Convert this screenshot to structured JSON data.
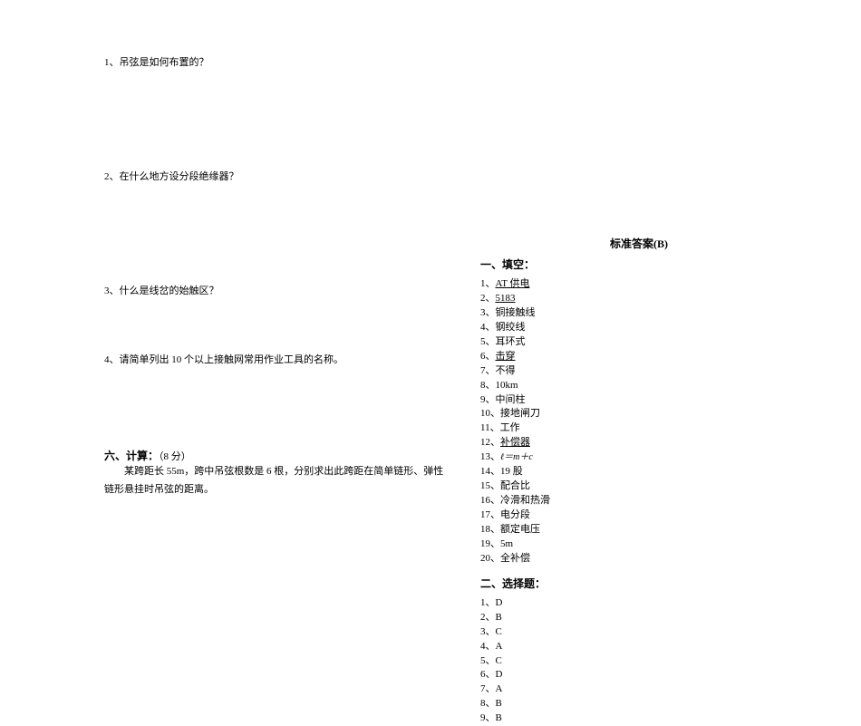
{
  "left": {
    "q1": "1、吊弦是如何布置的？",
    "q2": "2、在什么地方设分段绝缘器？",
    "q3": "3、什么是线岔的始触区？",
    "q4": "4、请简单列出 10 个以上接触网常用作业工具的名称。",
    "calc_heading": "六、计算：",
    "calc_points": "（8 分）",
    "calc_body": "某跨距长 55m，跨中吊弦根数是 6 根，分别求出此跨距在简单链形、弹性链形悬挂时吊弦的距离。"
  },
  "right": {
    "title": "标准答案(B)",
    "fill_heading": "一、填空：",
    "answers": [
      {
        "n": "1、",
        "t": "AT 供电",
        "u": true
      },
      {
        "n": "2、",
        "t": "5183",
        "u": true
      },
      {
        "n": "3、",
        "t": "铜接触线",
        "u": false
      },
      {
        "n": "4、",
        "t": "钢绞线",
        "u": false
      },
      {
        "n": "5、",
        "t": "耳环式",
        "u": false
      },
      {
        "n": "6、",
        "t": "击穿",
        "u": true
      },
      {
        "n": "7、",
        "t": "不得",
        "u": false
      },
      {
        "n": "8、",
        "t": "10km",
        "u": false
      },
      {
        "n": "9、",
        "t": "中间柱",
        "u": false
      },
      {
        "n": "10、",
        "t": "接地闸刀",
        "u": false
      },
      {
        "n": "11、",
        "t": "工作",
        "u": false
      },
      {
        "n": "12、",
        "t": "补偿器",
        "u": true
      },
      {
        "n": "13、",
        "t": "",
        "u": false,
        "formula": "ℓ＝m＋c"
      },
      {
        "n": "14、",
        "t": "19 股",
        "u": false
      },
      {
        "n": "15、",
        "t": "配合比",
        "u": false
      },
      {
        "n": "16、",
        "t": "冷滑和热滑",
        "u": false
      },
      {
        "n": "17、",
        "t": "电分段",
        "u": false
      },
      {
        "n": "18、",
        "t": "额定电压",
        "u": false
      },
      {
        "n": "19、",
        "t": "5m",
        "u": false
      },
      {
        "n": "20、",
        "t": "全补偿",
        "u": false
      }
    ],
    "choice_heading": "二、选择题：",
    "choices": [
      {
        "n": "1、",
        "t": "D"
      },
      {
        "n": "2、",
        "t": "B"
      },
      {
        "n": "3、",
        "t": "C"
      },
      {
        "n": "4、",
        "t": "A"
      },
      {
        "n": "5、",
        "t": "C"
      },
      {
        "n": "6、",
        "t": "D"
      },
      {
        "n": "7、",
        "t": "A"
      },
      {
        "n": "8、",
        "t": "B"
      },
      {
        "n": "9、",
        "t": "B"
      }
    ]
  }
}
